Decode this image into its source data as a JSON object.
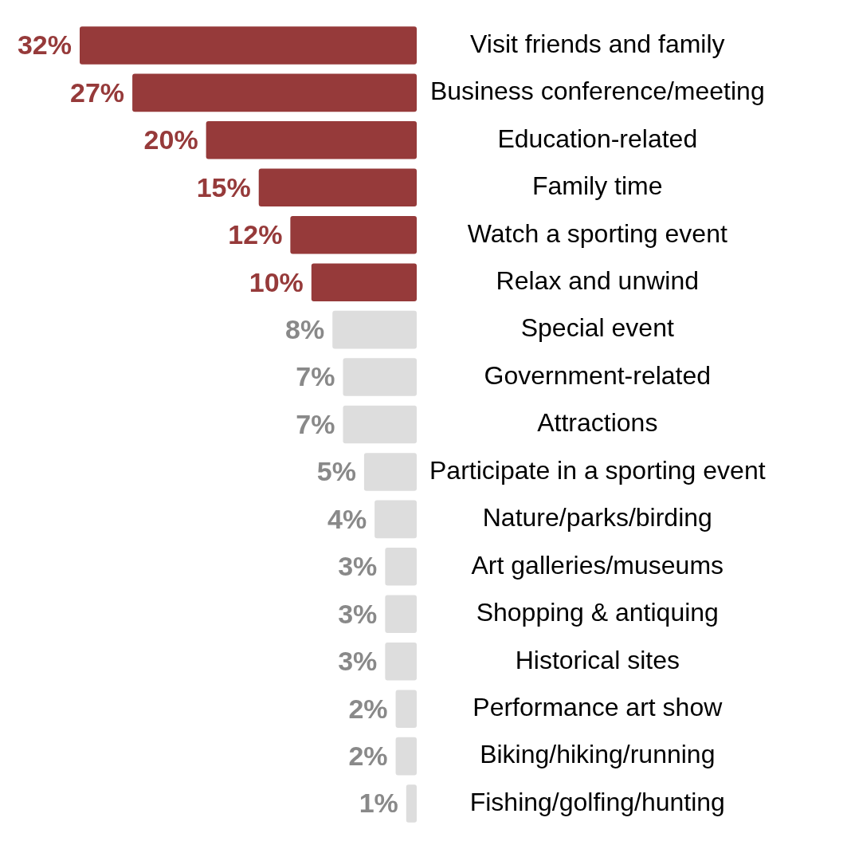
{
  "chart_data": {
    "type": "bar",
    "orientation": "horizontal",
    "categories": [
      "Visit friends and family",
      "Business conference/meeting",
      "Education-related",
      "Family time",
      "Watch a sporting event",
      "Relax and unwind",
      "Special event",
      "Government-related",
      "Attractions",
      "Participate in a sporting event",
      "Nature/parks/birding",
      "Art galleries/museums",
      "Shopping & antiquing",
      "Historical sites",
      "Performance art show",
      "Biking/hiking/running",
      "Fishing/golfing/hunting"
    ],
    "values": [
      32,
      27,
      20,
      15,
      12,
      10,
      8,
      7,
      7,
      5,
      4,
      3,
      3,
      3,
      2,
      2,
      1
    ],
    "value_labels": [
      "32%",
      "27%",
      "20%",
      "15%",
      "12%",
      "10%",
      "8%",
      "7%",
      "7%",
      "5%",
      "4%",
      "3%",
      "3%",
      "3%",
      "2%",
      "2%",
      "1%"
    ],
    "colors": [
      "#963a3a",
      "#963a3a",
      "#963a3a",
      "#963a3a",
      "#963a3a",
      "#963a3a",
      "#dddddd",
      "#dddddd",
      "#dddddd",
      "#dddddd",
      "#dddddd",
      "#dddddd",
      "#dddddd",
      "#dddddd",
      "#dddddd",
      "#dddddd",
      "#dddddd"
    ],
    "grid": false,
    "legend": false
  }
}
